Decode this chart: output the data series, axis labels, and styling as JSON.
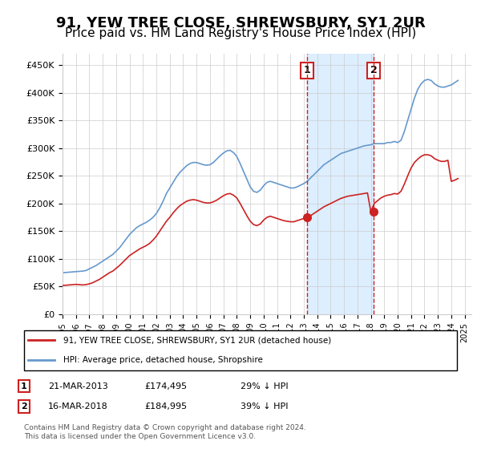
{
  "title": "91, YEW TREE CLOSE, SHREWSBURY, SY1 2UR",
  "subtitle": "Price paid vs. HM Land Registry's House Price Index (HPI)",
  "title_fontsize": 13,
  "subtitle_fontsize": 11,
  "ylabel_ticks": [
    "£0",
    "£50K",
    "£100K",
    "£150K",
    "£200K",
    "£250K",
    "£300K",
    "£350K",
    "£400K",
    "£450K"
  ],
  "ytick_values": [
    0,
    50000,
    100000,
    150000,
    200000,
    250000,
    300000,
    350000,
    400000,
    450000
  ],
  "ylim": [
    0,
    470000
  ],
  "xlim_start": 1995.0,
  "xlim_end": 2025.5,
  "hpi_color": "#6699cc",
  "price_color": "#cc2222",
  "background_color": "#ffffff",
  "grid_color": "#cccccc",
  "annotation_box_color": "#cc2222",
  "shading_color": "#ddeeff",
  "legend_label_red": "91, YEW TREE CLOSE, SHREWSBURY, SY1 2UR (detached house)",
  "legend_label_blue": "HPI: Average price, detached house, Shropshire",
  "footnote": "Contains HM Land Registry data © Crown copyright and database right 2024.\nThis data is licensed under the Open Government Licence v3.0.",
  "annotation1": {
    "label": "1",
    "date": 2013.22,
    "price": 174495,
    "x_line": 2013.22
  },
  "annotation2": {
    "label": "2",
    "date": 2018.22,
    "price": 184995,
    "x_line": 2018.22
  },
  "table_row1": {
    "num": "1",
    "date": "21-MAR-2013",
    "price": "£174,495",
    "note": "29% ↓ HPI"
  },
  "table_row2": {
    "num": "2",
    "date": "16-MAR-2018",
    "price": "£184,995",
    "note": "39% ↓ HPI"
  },
  "hpi_data_x": [
    1995.0,
    1995.25,
    1995.5,
    1995.75,
    1996.0,
    1996.25,
    1996.5,
    1996.75,
    1997.0,
    1997.25,
    1997.5,
    1997.75,
    1998.0,
    1998.25,
    1998.5,
    1998.75,
    1999.0,
    1999.25,
    1999.5,
    1999.75,
    2000.0,
    2000.25,
    2000.5,
    2000.75,
    2001.0,
    2001.25,
    2001.5,
    2001.75,
    2002.0,
    2002.25,
    2002.5,
    2002.75,
    2003.0,
    2003.25,
    2003.5,
    2003.75,
    2004.0,
    2004.25,
    2004.5,
    2004.75,
    2005.0,
    2005.25,
    2005.5,
    2005.75,
    2006.0,
    2006.25,
    2006.5,
    2006.75,
    2007.0,
    2007.25,
    2007.5,
    2007.75,
    2008.0,
    2008.25,
    2008.5,
    2008.75,
    2009.0,
    2009.25,
    2009.5,
    2009.75,
    2010.0,
    2010.25,
    2010.5,
    2010.75,
    2011.0,
    2011.25,
    2011.5,
    2011.75,
    2012.0,
    2012.25,
    2012.5,
    2012.75,
    2013.0,
    2013.25,
    2013.5,
    2013.75,
    2014.0,
    2014.25,
    2014.5,
    2014.75,
    2015.0,
    2015.25,
    2015.5,
    2015.75,
    2016.0,
    2016.25,
    2016.5,
    2016.75,
    2017.0,
    2017.25,
    2017.5,
    2017.75,
    2018.0,
    2018.25,
    2018.5,
    2018.75,
    2019.0,
    2019.25,
    2019.5,
    2019.75,
    2020.0,
    2020.25,
    2020.5,
    2020.75,
    2021.0,
    2021.25,
    2021.5,
    2021.75,
    2022.0,
    2022.25,
    2022.5,
    2022.75,
    2023.0,
    2023.25,
    2023.5,
    2023.75,
    2024.0,
    2024.25,
    2024.5
  ],
  "hpi_data_y": [
    75000,
    75500,
    76000,
    76500,
    77000,
    77500,
    78000,
    79000,
    82000,
    85000,
    88000,
    92000,
    96000,
    100000,
    104000,
    108000,
    114000,
    120000,
    128000,
    136000,
    144000,
    150000,
    156000,
    160000,
    163000,
    166000,
    170000,
    175000,
    182000,
    192000,
    204000,
    218000,
    228000,
    238000,
    248000,
    256000,
    262000,
    268000,
    272000,
    274000,
    274000,
    272000,
    270000,
    269000,
    270000,
    274000,
    280000,
    286000,
    291000,
    295000,
    296000,
    292000,
    285000,
    272000,
    258000,
    244000,
    230000,
    222000,
    220000,
    224000,
    232000,
    238000,
    240000,
    238000,
    236000,
    234000,
    232000,
    230000,
    228000,
    228000,
    230000,
    233000,
    236000,
    240000,
    246000,
    252000,
    258000,
    264000,
    270000,
    274000,
    278000,
    282000,
    286000,
    290000,
    292000,
    294000,
    296000,
    298000,
    300000,
    302000,
    304000,
    305000,
    306000,
    308000,
    308000,
    308000,
    308000,
    310000,
    310000,
    312000,
    310000,
    314000,
    330000,
    350000,
    370000,
    390000,
    406000,
    416000,
    422000,
    424000,
    422000,
    416000,
    412000,
    410000,
    410000,
    412000,
    414000,
    418000,
    422000
  ],
  "price_data_x": [
    1995.0,
    1995.25,
    1995.5,
    1995.75,
    1996.0,
    1996.25,
    1996.5,
    1996.75,
    1997.0,
    1997.25,
    1997.5,
    1997.75,
    1998.0,
    1998.25,
    1998.5,
    1998.75,
    1999.0,
    1999.25,
    1999.5,
    1999.75,
    2000.0,
    2000.25,
    2000.5,
    2000.75,
    2001.0,
    2001.25,
    2001.5,
    2001.75,
    2002.0,
    2002.25,
    2002.5,
    2002.75,
    2003.0,
    2003.25,
    2003.5,
    2003.75,
    2004.0,
    2004.25,
    2004.5,
    2004.75,
    2005.0,
    2005.25,
    2005.5,
    2005.75,
    2006.0,
    2006.25,
    2006.5,
    2006.75,
    2007.0,
    2007.25,
    2007.5,
    2007.75,
    2008.0,
    2008.25,
    2008.5,
    2008.75,
    2009.0,
    2009.25,
    2009.5,
    2009.75,
    2010.0,
    2010.25,
    2010.5,
    2010.75,
    2011.0,
    2011.25,
    2011.5,
    2011.75,
    2012.0,
    2012.25,
    2012.5,
    2012.75,
    2013.0,
    2013.25,
    2013.5,
    2013.75,
    2014.0,
    2014.25,
    2014.5,
    2014.75,
    2015.0,
    2015.25,
    2015.5,
    2015.75,
    2016.0,
    2016.25,
    2016.5,
    2016.75,
    2017.0,
    2017.25,
    2017.5,
    2017.75,
    2018.0,
    2018.25,
    2018.5,
    2018.75,
    2019.0,
    2019.25,
    2019.5,
    2019.75,
    2020.0,
    2020.25,
    2020.5,
    2020.75,
    2021.0,
    2021.25,
    2021.5,
    2021.75,
    2022.0,
    2022.25,
    2022.5,
    2022.75,
    2023.0,
    2023.25,
    2023.5,
    2023.75,
    2024.0,
    2024.25,
    2024.5
  ],
  "price_data_y": [
    52000,
    52500,
    53000,
    53500,
    54000,
    53500,
    53000,
    53500,
    55000,
    57000,
    60000,
    63000,
    67000,
    71000,
    75000,
    78000,
    83000,
    88000,
    94000,
    100000,
    106000,
    110000,
    114000,
    118000,
    121000,
    124000,
    128000,
    134000,
    141000,
    150000,
    159000,
    168000,
    175000,
    183000,
    190000,
    196000,
    200000,
    204000,
    206000,
    207000,
    206000,
    204000,
    202000,
    201000,
    201000,
    203000,
    206000,
    210000,
    214000,
    217000,
    218000,
    215000,
    210000,
    200000,
    189000,
    178000,
    168000,
    162000,
    160000,
    163000,
    170000,
    175000,
    177000,
    175000,
    173000,
    171000,
    169000,
    168000,
    167000,
    167000,
    169000,
    171000,
    173000,
    175000,
    178000,
    182000,
    186000,
    190000,
    194000,
    197000,
    200000,
    203000,
    206000,
    209000,
    211000,
    213000,
    214000,
    215000,
    216000,
    217000,
    218000,
    219000,
    184995,
    200000,
    205000,
    210000,
    213000,
    215000,
    216000,
    218000,
    217000,
    222000,
    235000,
    250000,
    264000,
    274000,
    280000,
    285000,
    288000,
    288000,
    286000,
    281000,
    278000,
    276000,
    276000,
    278000,
    240000,
    242000,
    245000
  ]
}
